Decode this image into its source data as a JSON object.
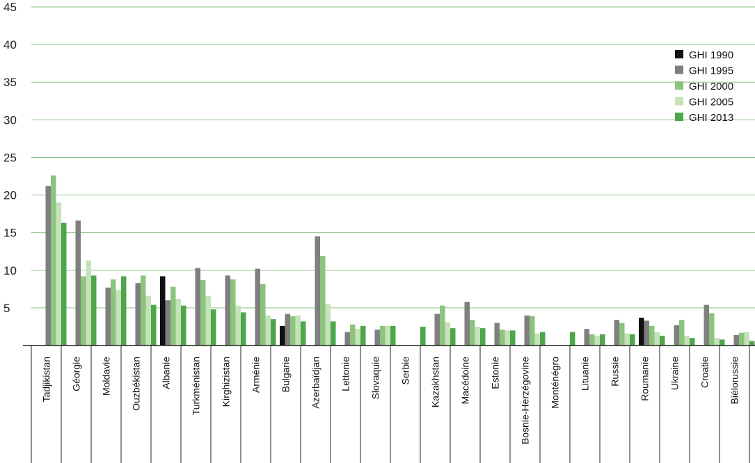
{
  "chart_data": {
    "type": "bar",
    "title": "",
    "xlabel": "",
    "ylabel": "",
    "ylim": [
      0,
      45
    ],
    "yticks": [
      5,
      10,
      15,
      20,
      25,
      30,
      35,
      40,
      45
    ],
    "grid": true,
    "legend_position": "top-right",
    "categories": [
      "Tadjikistan",
      "Géorgie",
      "Moldavie",
      "Ouzbékistan",
      "Albanie",
      "Turkménistan",
      "Kirghizistan",
      "Arménie",
      "Bulgarie",
      "Azerbaïdjan",
      "Lettonie",
      "Slovaquie",
      "Serbie",
      "Kazakhstan",
      "Macédoine",
      "Estonie",
      "Bosnie-Herzégovine",
      "Monténégro",
      "Lituanie",
      "Russie",
      "Roumanie",
      "Ukraine",
      "Croatie",
      "Biélorussie"
    ],
    "series": [
      {
        "name": "GHI 1990",
        "color": "#111111",
        "values": [
          null,
          null,
          null,
          null,
          9.2,
          null,
          null,
          null,
          2.6,
          null,
          null,
          null,
          null,
          null,
          null,
          null,
          null,
          null,
          null,
          null,
          3.7,
          null,
          null,
          null
        ]
      },
      {
        "name": "GHI 1995",
        "color": "#7f7f7f",
        "values": [
          21.2,
          16.6,
          7.7,
          8.3,
          6.0,
          10.3,
          9.3,
          10.2,
          4.2,
          14.5,
          1.8,
          2.1,
          null,
          4.2,
          5.8,
          3.0,
          4.0,
          null,
          2.2,
          3.4,
          3.3,
          2.7,
          5.4,
          1.4
        ]
      },
      {
        "name": "GHI 2000",
        "color": "#8cc47e",
        "values": [
          22.6,
          9.2,
          8.8,
          9.3,
          7.8,
          8.7,
          8.8,
          8.2,
          3.9,
          11.9,
          2.8,
          2.6,
          null,
          5.3,
          3.4,
          2.1,
          3.9,
          null,
          1.5,
          3.0,
          2.6,
          3.4,
          4.3,
          1.7
        ]
      },
      {
        "name": "GHI 2005",
        "color": "#c5e2b8",
        "values": [
          19.0,
          11.3,
          7.4,
          6.6,
          6.2,
          6.6,
          5.3,
          4.0,
          4.0,
          5.5,
          2.2,
          2.6,
          null,
          3.1,
          2.5,
          2.0,
          1.6,
          null,
          1.3,
          1.6,
          1.8,
          1.3,
          1.0,
          1.8
        ]
      },
      {
        "name": "GHI 2013",
        "color": "#4ea64a",
        "values": [
          16.3,
          9.3,
          9.2,
          5.4,
          5.3,
          4.8,
          4.4,
          3.5,
          3.2,
          3.2,
          2.6,
          2.6,
          2.5,
          2.3,
          2.3,
          2.0,
          1.8,
          1.8,
          1.5,
          1.5,
          1.3,
          1.0,
          0.8,
          0.6
        ]
      }
    ]
  }
}
